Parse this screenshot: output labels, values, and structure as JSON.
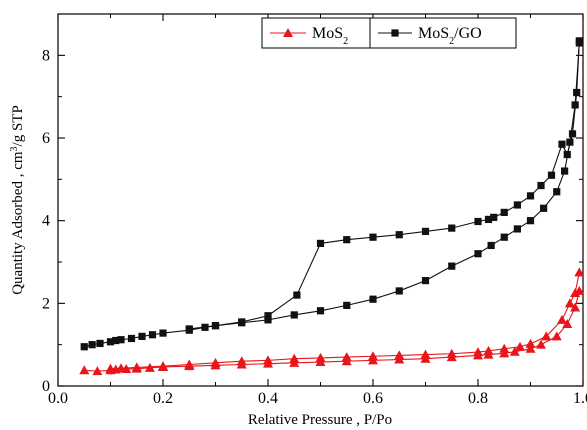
{
  "chart_data": {
    "type": "line",
    "xlabel": "Relative Pressure , P/Po",
    "ylabel": "Quantity Adsorbed , cm³/g STP",
    "xlim": [
      0.0,
      1.0
    ],
    "ylim": [
      0,
      9
    ],
    "xticks": [
      "0.0",
      "0.2",
      "0.4",
      "0.6",
      "0.8",
      "1.0"
    ],
    "yticks": [
      "0",
      "2",
      "4",
      "6",
      "8"
    ],
    "legend": {
      "position": "top-right",
      "entries": [
        {
          "label": "MoS",
          "sub": "2",
          "tail": ""
        },
        {
          "label": "MoS",
          "sub": "2",
          "tail": "/GO"
        }
      ]
    },
    "series": [
      {
        "name": "MoS2",
        "color": "#e8151b",
        "marker": "triangle",
        "adsorption": {
          "x": [
            0.05,
            0.075,
            0.1,
            0.11,
            0.13,
            0.15,
            0.175,
            0.2,
            0.25,
            0.3,
            0.35,
            0.4,
            0.45,
            0.5,
            0.55,
            0.6,
            0.65,
            0.7,
            0.75,
            0.8,
            0.82,
            0.85,
            0.87,
            0.9,
            0.92,
            0.95,
            0.97,
            0.985,
            0.993
          ],
          "y": [
            0.38,
            0.36,
            0.38,
            0.4,
            0.41,
            0.42,
            0.44,
            0.46,
            0.48,
            0.5,
            0.52,
            0.54,
            0.56,
            0.58,
            0.6,
            0.62,
            0.64,
            0.66,
            0.7,
            0.74,
            0.76,
            0.79,
            0.83,
            0.9,
            1.0,
            1.2,
            1.5,
            1.9,
            2.3
          ]
        },
        "desorption": {
          "x": [
            0.993,
            0.985,
            0.975,
            0.96,
            0.93,
            0.9,
            0.88,
            0.85,
            0.82,
            0.8,
            0.75,
            0.7,
            0.65,
            0.6,
            0.55,
            0.5,
            0.45,
            0.4,
            0.35,
            0.3,
            0.25,
            0.2,
            0.15,
            0.12,
            0.1
          ],
          "y": [
            2.75,
            2.25,
            2.0,
            1.6,
            1.2,
            1.02,
            0.95,
            0.9,
            0.85,
            0.82,
            0.78,
            0.76,
            0.74,
            0.72,
            0.7,
            0.68,
            0.66,
            0.62,
            0.6,
            0.56,
            0.52,
            0.48,
            0.45,
            0.43,
            0.42
          ]
        }
      },
      {
        "name": "MoS2/GO",
        "color": "#111111",
        "marker": "square",
        "adsorption": {
          "x": [
            0.05,
            0.065,
            0.08,
            0.1,
            0.11,
            0.12,
            0.14,
            0.16,
            0.18,
            0.2,
            0.25,
            0.28,
            0.3,
            0.35,
            0.4,
            0.45,
            0.5,
            0.55,
            0.6,
            0.65,
            0.7,
            0.75,
            0.8,
            0.825,
            0.85,
            0.875,
            0.9,
            0.925,
            0.95,
            0.965,
            0.975,
            0.985,
            0.993
          ],
          "y": [
            0.95,
            1.0,
            1.03,
            1.07,
            1.1,
            1.12,
            1.15,
            1.2,
            1.24,
            1.28,
            1.35,
            1.42,
            1.46,
            1.53,
            1.6,
            1.72,
            1.82,
            1.95,
            2.1,
            2.3,
            2.55,
            2.9,
            3.2,
            3.4,
            3.6,
            3.8,
            4.0,
            4.3,
            4.7,
            5.2,
            5.9,
            6.8,
            8.3
          ]
        },
        "desorption": {
          "x": [
            0.993,
            0.988,
            0.98,
            0.97,
            0.96,
            0.94,
            0.92,
            0.9,
            0.875,
            0.85,
            0.83,
            0.82,
            0.8,
            0.75,
            0.7,
            0.65,
            0.6,
            0.55,
            0.5,
            0.455,
            0.4,
            0.35,
            0.3,
            0.25
          ],
          "y": [
            8.35,
            7.1,
            6.1,
            5.6,
            5.85,
            5.1,
            4.85,
            4.6,
            4.38,
            4.2,
            4.08,
            4.03,
            3.98,
            3.82,
            3.74,
            3.66,
            3.6,
            3.54,
            3.45,
            2.2,
            1.7,
            1.55,
            1.46,
            1.38
          ]
        }
      }
    ]
  }
}
